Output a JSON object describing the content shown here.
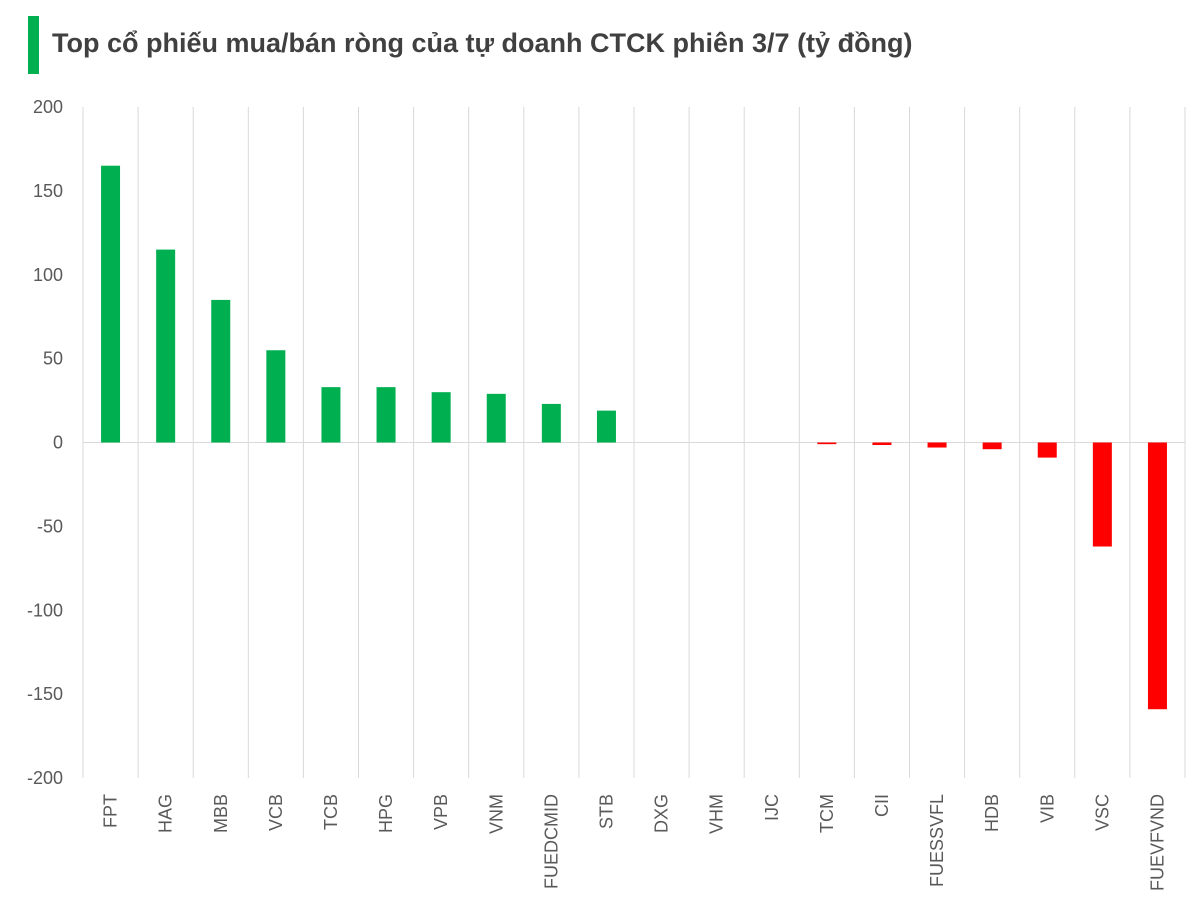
{
  "title": "Top cổ phiếu mua/bán ròng của tự doanh CTCK phiên 3/7 (tỷ đồng)",
  "colors": {
    "accent": "#00B050",
    "positive": "#00B050",
    "negative": "#FF0000",
    "grid": "#D9D9D9",
    "text": "#595959"
  },
  "chart_data": {
    "type": "bar",
    "title": "Top cổ phiếu mua/bán ròng của tự doanh CTCK phiên 3/7 (tỷ đồng)",
    "xlabel": "",
    "ylabel": "",
    "ylim": [
      -200,
      200
    ],
    "yticks": [
      200,
      150,
      100,
      50,
      0,
      -50,
      -100,
      -150,
      -200
    ],
    "grid": "vertical",
    "categories": [
      "FPT",
      "HAG",
      "MBB",
      "VCB",
      "TCB",
      "HPG",
      "VPB",
      "VNM",
      "FUEDCMID",
      "STB",
      "DXG",
      "VHM",
      "IJC",
      "TCM",
      "CII",
      "FUESSVFL",
      "HDB",
      "VIB",
      "VSC",
      "FUEVFVND"
    ],
    "values": [
      165,
      115,
      85,
      55,
      33,
      33,
      30,
      29,
      23,
      19,
      0,
      0,
      0,
      -1,
      -1.5,
      -3,
      -4,
      -9,
      -62,
      -159
    ]
  }
}
